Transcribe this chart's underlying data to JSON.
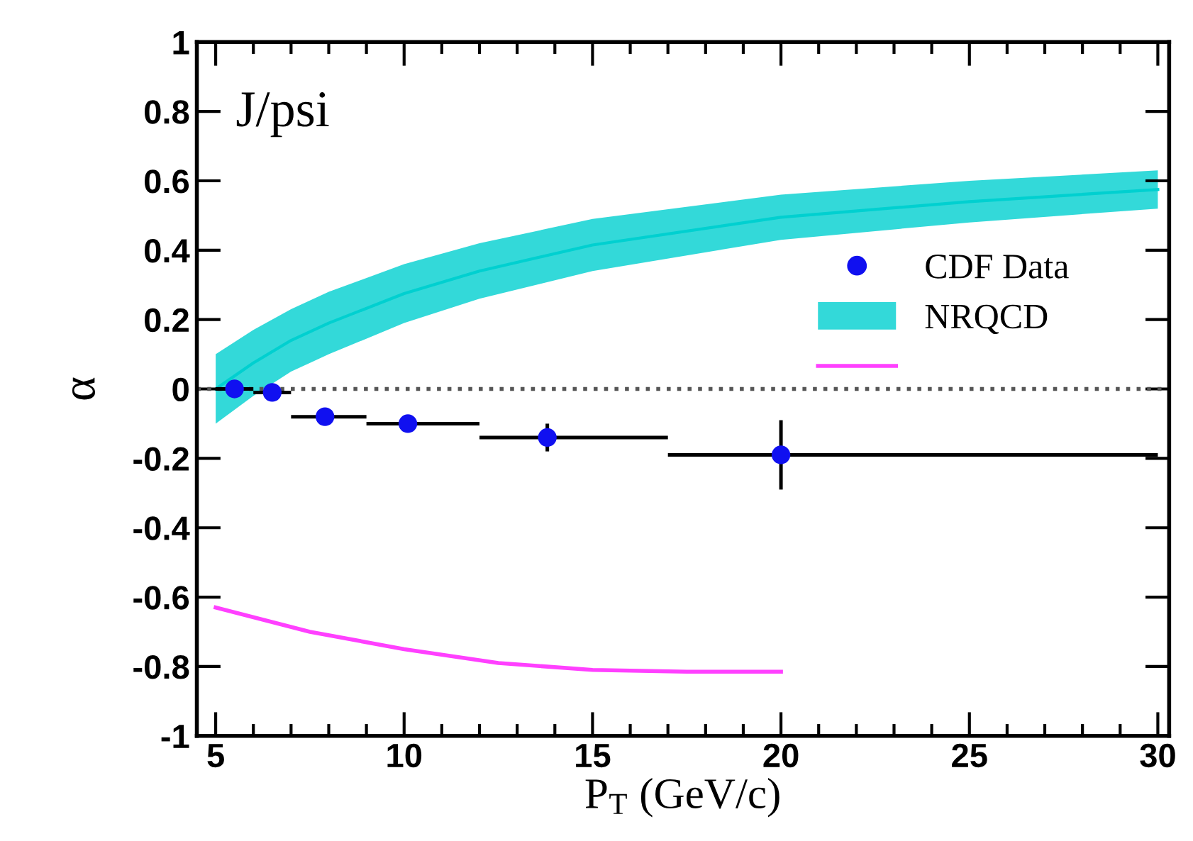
{
  "chart_data": {
    "type": "scatter",
    "xlabel": "P$_{T}$ (GeV/c)",
    "ylabel": "α",
    "annotations": [
      "J/psi"
    ],
    "xlim": [
      4.5,
      30.3
    ],
    "ylim": [
      -1,
      1
    ],
    "xticks": [
      5,
      10,
      15,
      20,
      25,
      30
    ],
    "yticks": [
      -1,
      -0.8,
      -0.6,
      -0.4,
      -0.2,
      0,
      0.2,
      0.4,
      0.6,
      0.8,
      1
    ],
    "grid": false,
    "legend": "right",
    "ref_lines": [
      {
        "axis": "y",
        "value": 0,
        "line_style": "dotted",
        "color": "#555555"
      }
    ],
    "series": [
      {
        "name": "CDF Data",
        "marker": "circle",
        "color": "#1010f0",
        "x": [
          5.5,
          6.5,
          7.9,
          10.1,
          13.8,
          20
        ],
        "values": [
          0.0,
          -0.01,
          -0.08,
          -0.1,
          -0.14,
          -0.19
        ],
        "errors": [
          null,
          null,
          null,
          null,
          0.04,
          0.1
        ],
        "xerrors": [
          [
            5,
            6
          ],
          [
            6,
            7
          ],
          [
            7,
            9
          ],
          [
            9,
            12
          ],
          [
            12,
            17
          ],
          [
            17,
            30
          ]
        ]
      },
      {
        "name": "NRQCD",
        "type": "line",
        "color": "#00d0d0",
        "x": [
          5,
          6,
          7,
          8,
          10,
          12,
          15,
          20,
          25,
          30
        ],
        "values": [
          0.0,
          0.075,
          0.14,
          0.19,
          0.275,
          0.34,
          0.415,
          0.495,
          0.54,
          0.575
        ],
        "lower": [
          -0.1,
          -0.02,
          0.05,
          0.1,
          0.19,
          0.26,
          0.34,
          0.43,
          0.48,
          0.52
        ],
        "upper": [
          0.1,
          0.17,
          0.23,
          0.28,
          0.36,
          0.42,
          0.49,
          0.56,
          0.6,
          0.63
        ]
      },
      {
        "type": "line",
        "color": "#ff40ff",
        "x": [
          5,
          7.5,
          10,
          12.5,
          15,
          17.5,
          20
        ],
        "values": [
          -0.63,
          -0.7,
          -0.75,
          -0.79,
          -0.81,
          -0.815,
          -0.815
        ]
      }
    ]
  }
}
